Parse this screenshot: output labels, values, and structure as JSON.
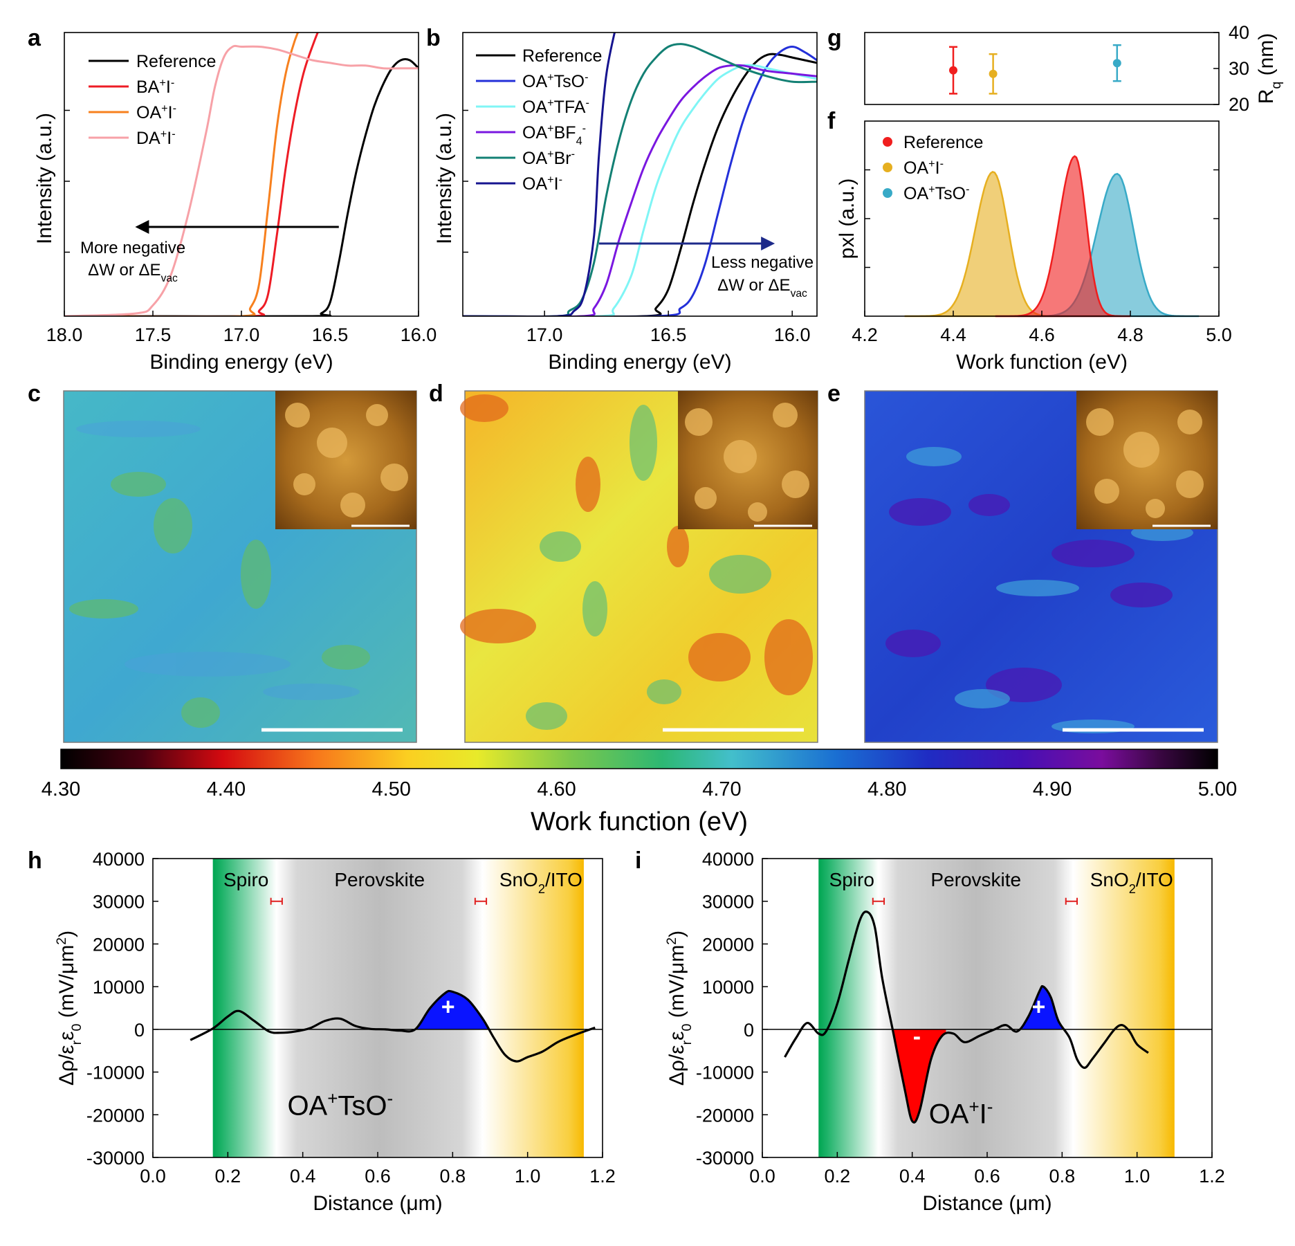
{
  "panels": {
    "a": "a",
    "b": "b",
    "c": "c",
    "d": "d",
    "e": "e",
    "f": "f",
    "g": "g",
    "h": "h",
    "i": "i"
  },
  "annotations": {
    "a_line1": "More negative",
    "a_line2": "ΔW or ΔE",
    "a_sub": "vac",
    "b_line1": "Less negative",
    "b_line2": "ΔW or ΔE",
    "b_sub": "vac",
    "h_region_spiro": "Spiro",
    "h_region_perov": "Perovskite",
    "h_region_sno2": "SnO",
    "h_region_sno2_sub": "2",
    "h_region_ito": "/ITO",
    "i_region_spiro": "Spiro",
    "i_region_perov": "Perovskite",
    "i_region_sno2": "SnO",
    "i_region_sno2_sub": "2",
    "i_region_ito": "/ITO",
    "h_plus": "+",
    "i_plus": "+",
    "i_minus": "-",
    "h_label_main": "OA",
    "h_label_sup1": "+",
    "h_label_mid": "TsO",
    "h_label_sup2": "-",
    "i_label_main": "OA",
    "i_label_sup1": "+",
    "i_label_mid": "I",
    "i_label_sup2": "-"
  },
  "colorbar": {
    "label": "Work function (eV)",
    "ticks": [
      "4.30",
      "4.40",
      "4.50",
      "4.60",
      "4.70",
      "4.80",
      "4.90",
      "5.00"
    ],
    "range": [
      4.3,
      5.0
    ]
  },
  "colors": {
    "reference": "#000000",
    "BA": "#ee1c25",
    "OA_I_a": "#f7801e",
    "DA": "#f7a1a7",
    "OA_TsO": "#2330d9",
    "OA_TFA": "#7ff5f5",
    "OA_BF4": "#7a17e0",
    "OA_Br": "#138074",
    "OA_I_b": "#16148f",
    "f_reference": "#f01e1e",
    "f_OAI": "#e6af20",
    "f_OATsO": "#38aac7",
    "spiro": "#00a651",
    "sno2": "#f7c000",
    "pos": "#0a14ff",
    "neg": "#ff0000"
  },
  "chart_data": [
    {
      "id": "a",
      "type": "line",
      "xlabel": "Binding energy (eV)",
      "ylabel": "Intensity (a.u.)",
      "xlim": [
        18.0,
        16.0
      ],
      "xticks": [
        "18.0",
        "17.5",
        "17.0",
        "16.5",
        "16.0"
      ],
      "series": [
        {
          "name": "Reference",
          "sup": "",
          "sup2": "",
          "x": [
            17.8,
            16.6,
            16.55,
            16.5,
            16.45,
            16.4,
            16.35,
            16.3,
            16.25,
            16.2,
            16.15,
            16.1,
            16.05,
            16.0
          ],
          "y": [
            0,
            0,
            0.01,
            0.05,
            0.2,
            0.38,
            0.54,
            0.67,
            0.78,
            0.86,
            0.92,
            0.95,
            0.95,
            0.92
          ]
        },
        {
          "name": "BA",
          "sup": "+",
          "sup2": "-",
          "x": [
            17.8,
            16.95,
            16.9,
            16.85,
            16.8,
            16.75,
            16.7,
            16.65,
            16.6,
            16.55,
            16.5
          ],
          "y": [
            0,
            0,
            0.02,
            0.08,
            0.3,
            0.55,
            0.75,
            0.9,
            1.0,
            1.08,
            1.12
          ]
        },
        {
          "name": "OA",
          "sup": "+",
          "sup2": "-",
          "x": [
            17.8,
            17.0,
            16.95,
            16.9,
            16.85,
            16.8,
            16.75,
            16.7,
            16.65
          ],
          "y": [
            0,
            0,
            0.03,
            0.12,
            0.4,
            0.7,
            0.9,
            1.02,
            1.1
          ]
        },
        {
          "name": "DA",
          "sup": "+",
          "sup2": "-",
          "x": [
            18.0,
            17.6,
            17.5,
            17.4,
            17.3,
            17.2,
            17.15,
            17.1,
            17.05,
            17.0,
            16.9,
            16.8,
            16.7,
            16.6,
            16.5,
            16.4,
            16.3,
            16.2,
            16.1,
            16.0
          ],
          "y": [
            0,
            0.01,
            0.04,
            0.15,
            0.38,
            0.68,
            0.85,
            0.96,
            1.0,
            1.0,
            1.0,
            0.99,
            0.97,
            0.95,
            0.94,
            0.93,
            0.93,
            0.92,
            0.92,
            0.92
          ]
        }
      ],
      "arrow": {
        "from": 16.45,
        "to": 17.6
      }
    },
    {
      "id": "b",
      "type": "line",
      "xlabel": "Binding energy (eV)",
      "ylabel": "Intensity (a.u.)",
      "xlim": [
        17.33,
        15.9
      ],
      "xticks": [
        "17.0",
        "16.5",
        "16.0"
      ],
      "series": [
        {
          "name": "Reference",
          "sup": "",
          "sup2": "",
          "x": [
            17.33,
            16.6,
            16.55,
            16.5,
            16.45,
            16.4,
            16.35,
            16.3,
            16.25,
            16.2,
            16.15,
            16.1,
            16.05,
            16.0,
            15.9
          ],
          "y": [
            0,
            0,
            0.03,
            0.1,
            0.25,
            0.42,
            0.57,
            0.7,
            0.8,
            0.88,
            0.94,
            0.97,
            0.97,
            0.96,
            0.94
          ]
        },
        {
          "name": "OA",
          "sup": "+",
          "mid": "TsO",
          "sup2": "-",
          "x": [
            17.33,
            16.55,
            16.45,
            16.4,
            16.35,
            16.3,
            16.25,
            16.2,
            16.15,
            16.1,
            16.05,
            16.0,
            15.95,
            15.9
          ],
          "y": [
            0,
            0,
            0.03,
            0.08,
            0.2,
            0.38,
            0.56,
            0.72,
            0.84,
            0.93,
            0.98,
            1.0,
            0.98,
            0.95
          ]
        },
        {
          "name": "OA",
          "sup": "+",
          "mid": "TFA",
          "sup2": "-",
          "x": [
            17.33,
            16.78,
            16.72,
            16.65,
            16.6,
            16.55,
            16.5,
            16.45,
            16.4,
            16.35,
            16.3,
            16.25,
            16.2,
            16.15,
            16.1,
            16.0,
            15.9
          ],
          "y": [
            0,
            0,
            0.03,
            0.15,
            0.32,
            0.48,
            0.6,
            0.7,
            0.77,
            0.83,
            0.88,
            0.91,
            0.93,
            0.93,
            0.92,
            0.9,
            0.88
          ]
        },
        {
          "name": "OA",
          "sup": "+",
          "mid": "BF",
          "sub": "4",
          "sup2": "-",
          "x": [
            17.33,
            16.85,
            16.8,
            16.75,
            16.7,
            16.65,
            16.6,
            16.55,
            16.5,
            16.45,
            16.4,
            16.35,
            16.3,
            16.25,
            16.2,
            16.15,
            16.1,
            16.0,
            15.9
          ],
          "y": [
            0,
            0,
            0.03,
            0.12,
            0.28,
            0.42,
            0.55,
            0.65,
            0.73,
            0.8,
            0.85,
            0.89,
            0.92,
            0.93,
            0.93,
            0.92,
            0.91,
            0.9,
            0.89
          ]
        },
        {
          "name": "OA",
          "sup": "+",
          "mid": "Br",
          "sup2": "-",
          "x": [
            17.33,
            16.95,
            16.9,
            16.85,
            16.8,
            16.75,
            16.7,
            16.65,
            16.6,
            16.55,
            16.5,
            16.45,
            16.4,
            16.35,
            16.3,
            16.2,
            16.1,
            16.0,
            15.9
          ],
          "y": [
            0,
            0,
            0.02,
            0.06,
            0.2,
            0.45,
            0.65,
            0.8,
            0.9,
            0.96,
            1.0,
            1.01,
            1.0,
            0.98,
            0.96,
            0.92,
            0.89,
            0.87,
            0.87
          ]
        },
        {
          "name": "OA",
          "sup": "+",
          "mid": "I",
          "sup2": "-",
          "x": [
            17.33,
            16.95,
            16.88,
            16.84,
            16.8,
            16.78,
            16.75,
            16.7
          ],
          "y": [
            0,
            0,
            0.02,
            0.08,
            0.3,
            0.6,
            0.9,
            1.12
          ]
        }
      ],
      "arrow": {
        "from": 16.78,
        "to": 16.07
      }
    },
    {
      "id": "f",
      "type": "area",
      "xlabel": "Work function (eV)",
      "ylabel": "pxl (a.u.)",
      "xlim": [
        4.2,
        5.0
      ],
      "xticks": [
        "4.2",
        "4.4",
        "4.6",
        "4.8",
        "5.0"
      ],
      "series": [
        {
          "name": "Reference",
          "sup": "",
          "sup2": "",
          "center": 4.675,
          "sigma_left": 0.036,
          "sigma_right": 0.025,
          "peak": 0.82
        },
        {
          "name": "OA",
          "sup": "+",
          "mid": "I",
          "sup2": "-",
          "center": 4.49,
          "sigma_left": 0.04,
          "sigma_right": 0.034,
          "peak": 0.74
        },
        {
          "name": "OA",
          "sup": "+",
          "mid": "TsO",
          "sup2": "-",
          "center": 4.77,
          "sigma_left": 0.045,
          "sigma_right": 0.037,
          "peak": 0.73
        }
      ]
    },
    {
      "id": "g",
      "type": "scatter",
      "ylabel": "R",
      "ylabel_sub": "q",
      "ylabel_unit": " (nm)",
      "ylim": [
        20,
        40
      ],
      "yticks": [
        "20",
        "30",
        "40"
      ],
      "points": [
        {
          "x": 4.4,
          "y": 29.5,
          "err": 6.5
        },
        {
          "x": 4.49,
          "y": 28.5,
          "err": 5.5
        },
        {
          "x": 4.77,
          "y": 31.5,
          "err": 5.0
        }
      ]
    },
    {
      "id": "h",
      "type": "line",
      "xlabel": "Distance (μm)",
      "ylabel": "Δρ/ε",
      "ylabel_sub1": "r",
      "ylabel_mid": "ε",
      "ylabel_sub2": "0",
      "ylabel_unit": " (mV/μm",
      "ylabel_sup": "2",
      "ylabel_end": ")",
      "xlim": [
        0.0,
        1.2
      ],
      "ylim": [
        -30000,
        40000
      ],
      "xticks": [
        "0.0",
        "0.2",
        "0.4",
        "0.6",
        "0.8",
        "1.0",
        "1.2"
      ],
      "yticks": [
        "40000",
        "30000",
        "20000",
        "10000",
        "0",
        "-10000",
        "-20000",
        "-30000"
      ],
      "regions": {
        "spiro": [
          0.16,
          0.33
        ],
        "sno2": [
          0.88,
          1.15
        ]
      },
      "errbars": [
        {
          "x": 0.33,
          "w": 0.015
        },
        {
          "x": 0.875,
          "w": 0.015
        }
      ],
      "x": [
        0.1,
        0.16,
        0.2,
        0.23,
        0.27,
        0.31,
        0.34,
        0.38,
        0.42,
        0.46,
        0.5,
        0.54,
        0.58,
        0.62,
        0.66,
        0.7,
        0.74,
        0.78,
        0.8,
        0.84,
        0.88,
        0.91,
        0.94,
        0.97,
        1.0,
        1.04,
        1.08,
        1.12,
        1.18
      ],
      "y": [
        -2500,
        200,
        3000,
        4300,
        2000,
        -500,
        -800,
        -500,
        300,
        2000,
        2500,
        800,
        100,
        0,
        -300,
        0,
        5000,
        8500,
        8800,
        7000,
        2500,
        -2000,
        -6000,
        -7500,
        -6500,
        -5200,
        -3000,
        -1500,
        400
      ],
      "fill_pos": [
        0.7,
        0.905
      ],
      "fill_neg": []
    },
    {
      "id": "i",
      "type": "line",
      "xlabel": "Distance (μm)",
      "ylabel": "Δρ/ε",
      "ylabel_sub1": "r",
      "ylabel_mid": "ε",
      "ylabel_sub2": "0",
      "ylabel_unit": " (mV/μm",
      "ylabel_sup": "2",
      "ylabel_end": ")",
      "xlim": [
        0.0,
        1.2
      ],
      "ylim": [
        -30000,
        40000
      ],
      "xticks": [
        "0.0",
        "0.2",
        "0.4",
        "0.6",
        "0.8",
        "1.0",
        "1.2"
      ],
      "yticks": [
        "40000",
        "30000",
        "20000",
        "10000",
        "0",
        "-10000",
        "-20000",
        "-30000"
      ],
      "regions": {
        "spiro": [
          0.15,
          0.31
        ],
        "sno2": [
          0.83,
          1.1
        ]
      },
      "errbars": [
        {
          "x": 0.31,
          "w": 0.015
        },
        {
          "x": 0.825,
          "w": 0.015
        }
      ],
      "x": [
        0.06,
        0.09,
        0.12,
        0.15,
        0.17,
        0.2,
        0.23,
        0.26,
        0.28,
        0.3,
        0.32,
        0.35,
        0.38,
        0.4,
        0.42,
        0.45,
        0.48,
        0.51,
        0.54,
        0.58,
        0.62,
        0.65,
        0.68,
        0.71,
        0.74,
        0.75,
        0.77,
        0.79,
        0.82,
        0.84,
        0.86,
        0.88,
        0.91,
        0.94,
        0.96,
        0.98,
        1.0,
        1.03
      ],
      "y": [
        -6500,
        -2000,
        1500,
        -1000,
        -500,
        6000,
        16000,
        25500,
        27500,
        24000,
        12000,
        -1000,
        -14000,
        -21500,
        -19000,
        -7000,
        -1500,
        -1000,
        -3000,
        -1500,
        0,
        1000,
        -500,
        3000,
        9000,
        10000,
        7500,
        2000,
        -2000,
        -7000,
        -9000,
        -7000,
        -3500,
        0,
        1000,
        -500,
        -3500,
        -5500
      ],
      "fill_pos": [
        0.675,
        0.8
      ],
      "fill_neg": [
        0.335,
        0.49
      ]
    }
  ]
}
